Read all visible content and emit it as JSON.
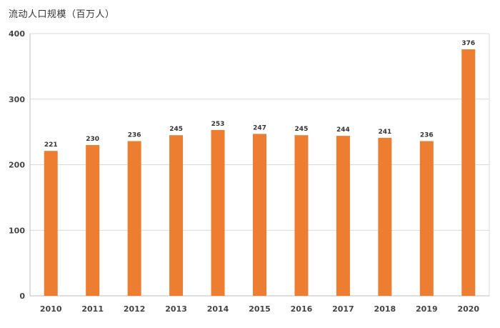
{
  "chart_data": {
    "type": "bar",
    "title": "流动人口规模（百万人）",
    "xlabel": "",
    "ylabel": "",
    "categories": [
      "2010",
      "2011",
      "2012",
      "2013",
      "2014",
      "2015",
      "2016",
      "2017",
      "2018",
      "2019",
      "2020"
    ],
    "values": [
      221,
      230,
      236,
      245,
      253,
      247,
      245,
      244,
      241,
      236,
      376
    ],
    "ylim": [
      0,
      400
    ],
    "yticks": [
      0,
      100,
      200,
      300,
      400
    ],
    "grid": true,
    "legend": "none",
    "bar_color": "#ED7D31",
    "grid_color": "#D9D9D9",
    "axis_color": "#BFBFBF"
  }
}
